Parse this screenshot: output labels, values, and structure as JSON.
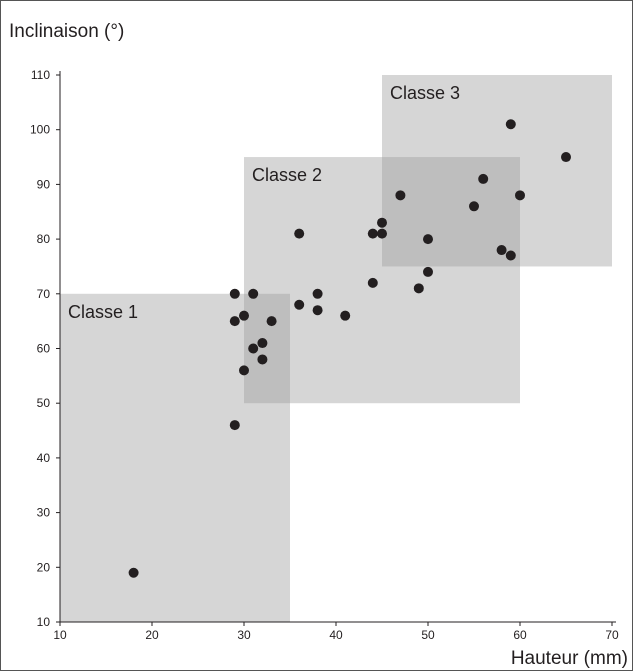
{
  "chart_data": {
    "type": "scatter",
    "title": "",
    "xlabel": "Hauteur (mm)",
    "ylabel": "Inclinaison (°)",
    "xlim": [
      10,
      70
    ],
    "ylim": [
      10,
      110
    ],
    "xticks": [
      10,
      20,
      30,
      40,
      50,
      60,
      70
    ],
    "yticks": [
      10,
      20,
      30,
      40,
      50,
      60,
      70,
      80,
      90,
      100,
      110
    ],
    "grid": false,
    "point_color": "#231f20",
    "region_color": "#9e9e9e",
    "regions": [
      {
        "label": "Classe 1",
        "x": [
          10,
          35
        ],
        "y": [
          10,
          70
        ]
      },
      {
        "label": "Classe 2",
        "x": [
          30,
          60
        ],
        "y": [
          50,
          95
        ]
      },
      {
        "label": "Classe 3",
        "x": [
          45,
          70
        ],
        "y": [
          75,
          110
        ]
      }
    ],
    "points": [
      {
        "x": 18,
        "y": 19
      },
      {
        "x": 29,
        "y": 46
      },
      {
        "x": 29,
        "y": 70
      },
      {
        "x": 29,
        "y": 65
      },
      {
        "x": 30,
        "y": 66
      },
      {
        "x": 30,
        "y": 56
      },
      {
        "x": 31,
        "y": 70
      },
      {
        "x": 31,
        "y": 60
      },
      {
        "x": 32,
        "y": 61
      },
      {
        "x": 32,
        "y": 58
      },
      {
        "x": 33,
        "y": 65
      },
      {
        "x": 36,
        "y": 81
      },
      {
        "x": 36,
        "y": 68
      },
      {
        "x": 38,
        "y": 70
      },
      {
        "x": 38,
        "y": 67
      },
      {
        "x": 41,
        "y": 66
      },
      {
        "x": 44,
        "y": 81
      },
      {
        "x": 44,
        "y": 72
      },
      {
        "x": 45,
        "y": 83
      },
      {
        "x": 45,
        "y": 81
      },
      {
        "x": 47,
        "y": 88
      },
      {
        "x": 49,
        "y": 71
      },
      {
        "x": 50,
        "y": 80
      },
      {
        "x": 50,
        "y": 74
      },
      {
        "x": 55,
        "y": 86
      },
      {
        "x": 56,
        "y": 91
      },
      {
        "x": 58,
        "y": 78
      },
      {
        "x": 59,
        "y": 101
      },
      {
        "x": 59,
        "y": 77
      },
      {
        "x": 60,
        "y": 88
      },
      {
        "x": 65,
        "y": 95
      }
    ]
  }
}
